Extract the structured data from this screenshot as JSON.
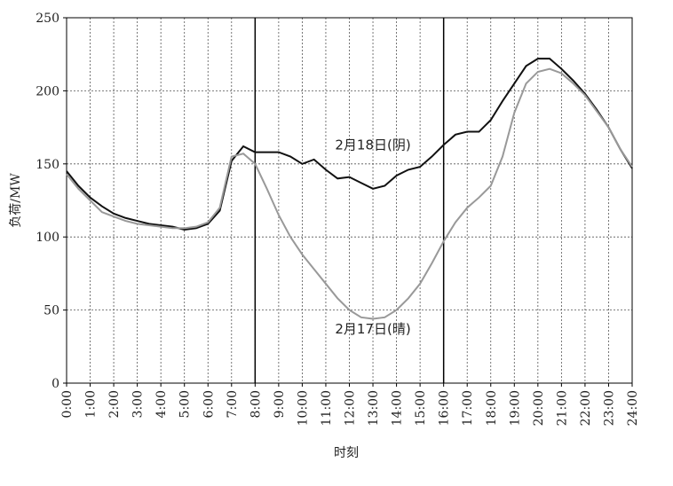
{
  "chart_data": {
    "type": "line",
    "x_label": "时刻",
    "y_label": "负荷/MW",
    "x": [
      0,
      0.5,
      1,
      1.5,
      2,
      2.5,
      3,
      3.5,
      4,
      4.5,
      5,
      5.5,
      6,
      6.5,
      7,
      7.5,
      8,
      8.5,
      9,
      9.5,
      10,
      10.5,
      11,
      11.5,
      12,
      12.5,
      13,
      13.5,
      14,
      14.5,
      15,
      15.5,
      16,
      16.5,
      17,
      17.5,
      18,
      18.5,
      19,
      19.5,
      20,
      20.5,
      21,
      21.5,
      22,
      22.5,
      23,
      23.5,
      24
    ],
    "series": [
      {
        "color": "#111111",
        "values": [
          145,
          135,
          127,
          121,
          116,
          113,
          111,
          109,
          108,
          107,
          105,
          106,
          109,
          118,
          152,
          162,
          158,
          158,
          158,
          155,
          150,
          153,
          146,
          140,
          141,
          137,
          133,
          135,
          142,
          146,
          148,
          155,
          163,
          170,
          172,
          172,
          180,
          193,
          205,
          217,
          222,
          222,
          215,
          207,
          198,
          187,
          175,
          160,
          147
        ]
      },
      {
        "color": "#999999",
        "values": [
          143,
          133,
          125,
          117,
          114,
          111,
          109,
          108,
          107,
          106,
          106,
          107,
          110,
          120,
          155,
          157,
          150,
          133,
          115,
          100,
          88,
          78,
          68,
          58,
          50,
          45,
          44,
          45,
          50,
          58,
          68,
          82,
          97,
          110,
          120,
          127,
          135,
          155,
          185,
          205,
          213,
          215,
          212,
          205,
          197,
          186,
          175,
          160,
          148
        ]
      }
    ],
    "annotations": [
      {
        "text": "2月18日(阴)",
        "x": 13,
        "y": 160
      },
      {
        "text": "2月17日(晴)",
        "x": 13,
        "y": 34
      }
    ],
    "vlines": [
      8,
      16
    ],
    "xlim": [
      0,
      24
    ],
    "ylim": [
      0,
      250
    ],
    "xticks": [
      {
        "value": 0,
        "label": "0:00"
      },
      {
        "value": 1,
        "label": "1:00"
      },
      {
        "value": 2,
        "label": "2:00"
      },
      {
        "value": 3,
        "label": "3:00"
      },
      {
        "value": 4,
        "label": "4:00"
      },
      {
        "value": 5,
        "label": "5:00"
      },
      {
        "value": 6,
        "label": "6:00"
      },
      {
        "value": 7,
        "label": "7:00"
      },
      {
        "value": 8,
        "label": "8:00"
      },
      {
        "value": 9,
        "label": "9:00"
      },
      {
        "value": 10,
        "label": "10:00"
      },
      {
        "value": 11,
        "label": "11:00"
      },
      {
        "value": 12,
        "label": "12:00"
      },
      {
        "value": 13,
        "label": "13:00"
      },
      {
        "value": 14,
        "label": "14:00"
      },
      {
        "value": 15,
        "label": "15:00"
      },
      {
        "value": 16,
        "label": "16:00"
      },
      {
        "value": 17,
        "label": "17:00"
      },
      {
        "value": 18,
        "label": "18:00"
      },
      {
        "value": 19,
        "label": "19:00"
      },
      {
        "value": 20,
        "label": "20:00"
      },
      {
        "value": 21,
        "label": "21:00"
      },
      {
        "value": 22,
        "label": "22:00"
      },
      {
        "value": 23,
        "label": "23:00"
      },
      {
        "value": 24,
        "label": "24:00"
      }
    ],
    "yticks": [
      0,
      50,
      100,
      150,
      200,
      250
    ],
    "grid": true
  }
}
